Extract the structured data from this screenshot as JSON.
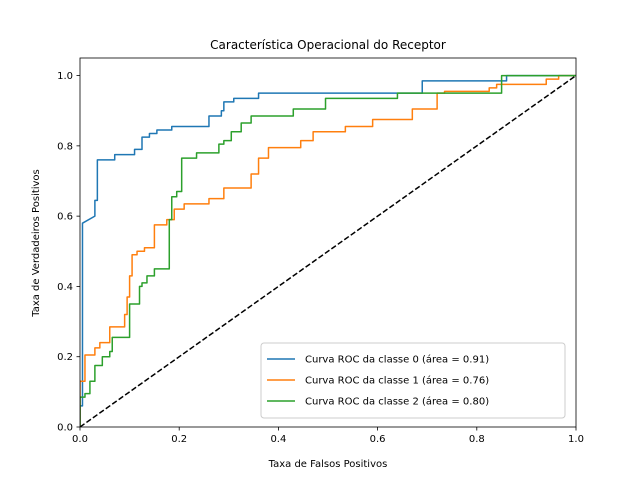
{
  "chart_data": {
    "type": "line",
    "title": "Característica Operacional do Receptor",
    "xlabel": "Taxa de Falsos Positivos",
    "ylabel": "Taxa de Verdadeiros Positivos",
    "xlim": [
      0.0,
      1.0
    ],
    "ylim": [
      0.0,
      1.05
    ],
    "x_ticks": [
      "0.0",
      "0.2",
      "0.4",
      "0.6",
      "0.8",
      "1.0"
    ],
    "y_ticks": [
      "0.0",
      "0.2",
      "0.4",
      "0.6",
      "0.8",
      "1.0"
    ],
    "x_tick_values": [
      0.0,
      0.2,
      0.4,
      0.6,
      0.8,
      1.0
    ],
    "y_tick_values": [
      0.0,
      0.2,
      0.4,
      0.6,
      0.8,
      1.0
    ],
    "grid": false,
    "legend_position": "lower right",
    "series": [
      {
        "name": "Curva ROC da classe 0 (área = 0.91)",
        "color": "#1f77b4",
        "x": [
          0.0,
          0.0,
          0.005,
          0.005,
          0.03,
          0.03,
          0.035,
          0.035,
          0.04,
          0.04,
          0.07,
          0.07,
          0.11,
          0.11,
          0.125,
          0.125,
          0.14,
          0.14,
          0.155,
          0.155,
          0.185,
          0.185,
          0.26,
          0.26,
          0.285,
          0.285,
          0.29,
          0.29,
          0.31,
          0.31,
          0.36,
          0.36,
          0.69,
          0.69,
          0.86,
          0.86,
          1.0
        ],
        "y": [
          0.0,
          0.06,
          0.06,
          0.58,
          0.6,
          0.645,
          0.645,
          0.76,
          0.76,
          0.76,
          0.76,
          0.775,
          0.775,
          0.79,
          0.79,
          0.825,
          0.825,
          0.835,
          0.835,
          0.845,
          0.845,
          0.855,
          0.855,
          0.885,
          0.885,
          0.9,
          0.9,
          0.925,
          0.925,
          0.935,
          0.935,
          0.95,
          0.95,
          0.985,
          0.985,
          1.0,
          1.0
        ]
      },
      {
        "name": "Curva ROC da classe 1 (área = 0.76)",
        "color": "#ff7f0e",
        "x": [
          0.0,
          0.0,
          0.01,
          0.01,
          0.03,
          0.03,
          0.04,
          0.04,
          0.06,
          0.06,
          0.09,
          0.09,
          0.095,
          0.095,
          0.1,
          0.1,
          0.105,
          0.105,
          0.115,
          0.115,
          0.13,
          0.13,
          0.15,
          0.15,
          0.175,
          0.175,
          0.19,
          0.19,
          0.21,
          0.21,
          0.26,
          0.26,
          0.29,
          0.29,
          0.345,
          0.345,
          0.36,
          0.36,
          0.38,
          0.38,
          0.445,
          0.445,
          0.47,
          0.47,
          0.535,
          0.535,
          0.59,
          0.59,
          0.67,
          0.67,
          0.72,
          0.72,
          0.735,
          0.735,
          0.825,
          0.825,
          0.84,
          0.84,
          0.94,
          0.94,
          0.965,
          0.965,
          1.0
        ],
        "y": [
          0.0,
          0.13,
          0.13,
          0.205,
          0.205,
          0.225,
          0.225,
          0.24,
          0.24,
          0.285,
          0.285,
          0.32,
          0.32,
          0.37,
          0.37,
          0.43,
          0.43,
          0.49,
          0.49,
          0.5,
          0.5,
          0.51,
          0.51,
          0.575,
          0.575,
          0.59,
          0.59,
          0.62,
          0.62,
          0.635,
          0.635,
          0.65,
          0.65,
          0.68,
          0.68,
          0.72,
          0.72,
          0.765,
          0.765,
          0.795,
          0.795,
          0.815,
          0.815,
          0.84,
          0.84,
          0.855,
          0.855,
          0.875,
          0.875,
          0.905,
          0.905,
          0.95,
          0.95,
          0.955,
          0.955,
          0.965,
          0.965,
          0.975,
          0.975,
          0.99,
          0.99,
          1.0,
          1.0
        ]
      },
      {
        "name": "Curva ROC da classe 2 (área = 0.80)",
        "color": "#2ca02c",
        "x": [
          0.0,
          0.0,
          0.01,
          0.01,
          0.02,
          0.02,
          0.03,
          0.03,
          0.045,
          0.045,
          0.06,
          0.06,
          0.065,
          0.065,
          0.1,
          0.1,
          0.12,
          0.12,
          0.125,
          0.125,
          0.135,
          0.135,
          0.15,
          0.15,
          0.18,
          0.18,
          0.185,
          0.185,
          0.195,
          0.195,
          0.205,
          0.205,
          0.235,
          0.235,
          0.28,
          0.28,
          0.29,
          0.29,
          0.305,
          0.305,
          0.325,
          0.325,
          0.345,
          0.345,
          0.43,
          0.43,
          0.495,
          0.495,
          0.64,
          0.64,
          0.85,
          0.85,
          1.0
        ],
        "y": [
          0.0,
          0.085,
          0.085,
          0.095,
          0.095,
          0.13,
          0.13,
          0.175,
          0.175,
          0.2,
          0.2,
          0.215,
          0.215,
          0.255,
          0.255,
          0.35,
          0.35,
          0.4,
          0.4,
          0.41,
          0.41,
          0.43,
          0.43,
          0.45,
          0.45,
          0.59,
          0.59,
          0.655,
          0.655,
          0.67,
          0.67,
          0.765,
          0.765,
          0.78,
          0.78,
          0.805,
          0.805,
          0.815,
          0.815,
          0.84,
          0.84,
          0.865,
          0.865,
          0.885,
          0.885,
          0.905,
          0.905,
          0.935,
          0.935,
          0.95,
          0.95,
          1.0,
          1.0
        ]
      }
    ],
    "reference_line": {
      "x": [
        0.0,
        1.0
      ],
      "y": [
        0.0,
        1.0
      ],
      "color": "#000000",
      "style": "dashed"
    }
  }
}
